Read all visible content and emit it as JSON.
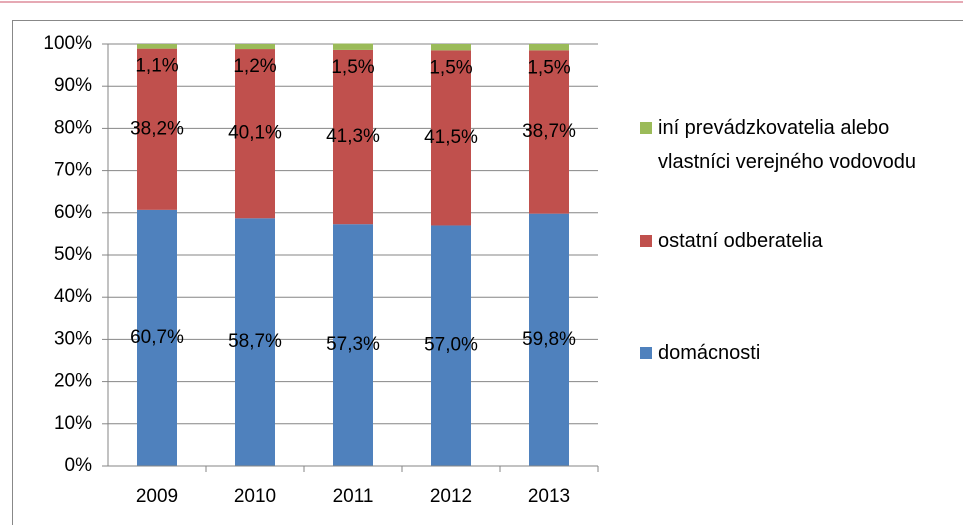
{
  "chart_data": {
    "type": "stacked_bar",
    "categories": [
      "2009",
      "2010",
      "2011",
      "2012",
      "2013"
    ],
    "series": [
      {
        "name": "domácnosti",
        "color": "#4f81bd",
        "values": [
          60.7,
          58.7,
          57.3,
          57.0,
          59.8
        ],
        "value_labels": [
          "60,7%",
          "58,7%",
          "57,3%",
          "57,0%",
          "59,8%"
        ]
      },
      {
        "name": "ostatní odberatelia",
        "color": "#c0504d",
        "values": [
          38.2,
          40.1,
          41.3,
          41.5,
          38.7
        ],
        "value_labels": [
          "38,2%",
          "40,1%",
          "41,3%",
          "41,5%",
          "38,7%"
        ]
      },
      {
        "name": "iní prevádzkovatelia alebo vlastníci verejného vodovodu",
        "color": "#9bbb59",
        "values": [
          1.1,
          1.2,
          1.5,
          1.5,
          1.5
        ],
        "value_labels": [
          "1,1%",
          "1,2%",
          "1,5%",
          "1,5%",
          "1,5%"
        ]
      }
    ],
    "ylim": [
      0,
      100
    ],
    "yticks": [
      {
        "value": 0,
        "label": "0%"
      },
      {
        "value": 10,
        "label": "10%"
      },
      {
        "value": 20,
        "label": "20%"
      },
      {
        "value": 30,
        "label": "30%"
      },
      {
        "value": 40,
        "label": "40%"
      },
      {
        "value": 50,
        "label": "50%"
      },
      {
        "value": 60,
        "label": "60%"
      },
      {
        "value": 70,
        "label": "70%"
      },
      {
        "value": 80,
        "label": "80%"
      },
      {
        "value": 90,
        "label": "90%"
      },
      {
        "value": 100,
        "label": "100%"
      }
    ],
    "grid": true
  }
}
